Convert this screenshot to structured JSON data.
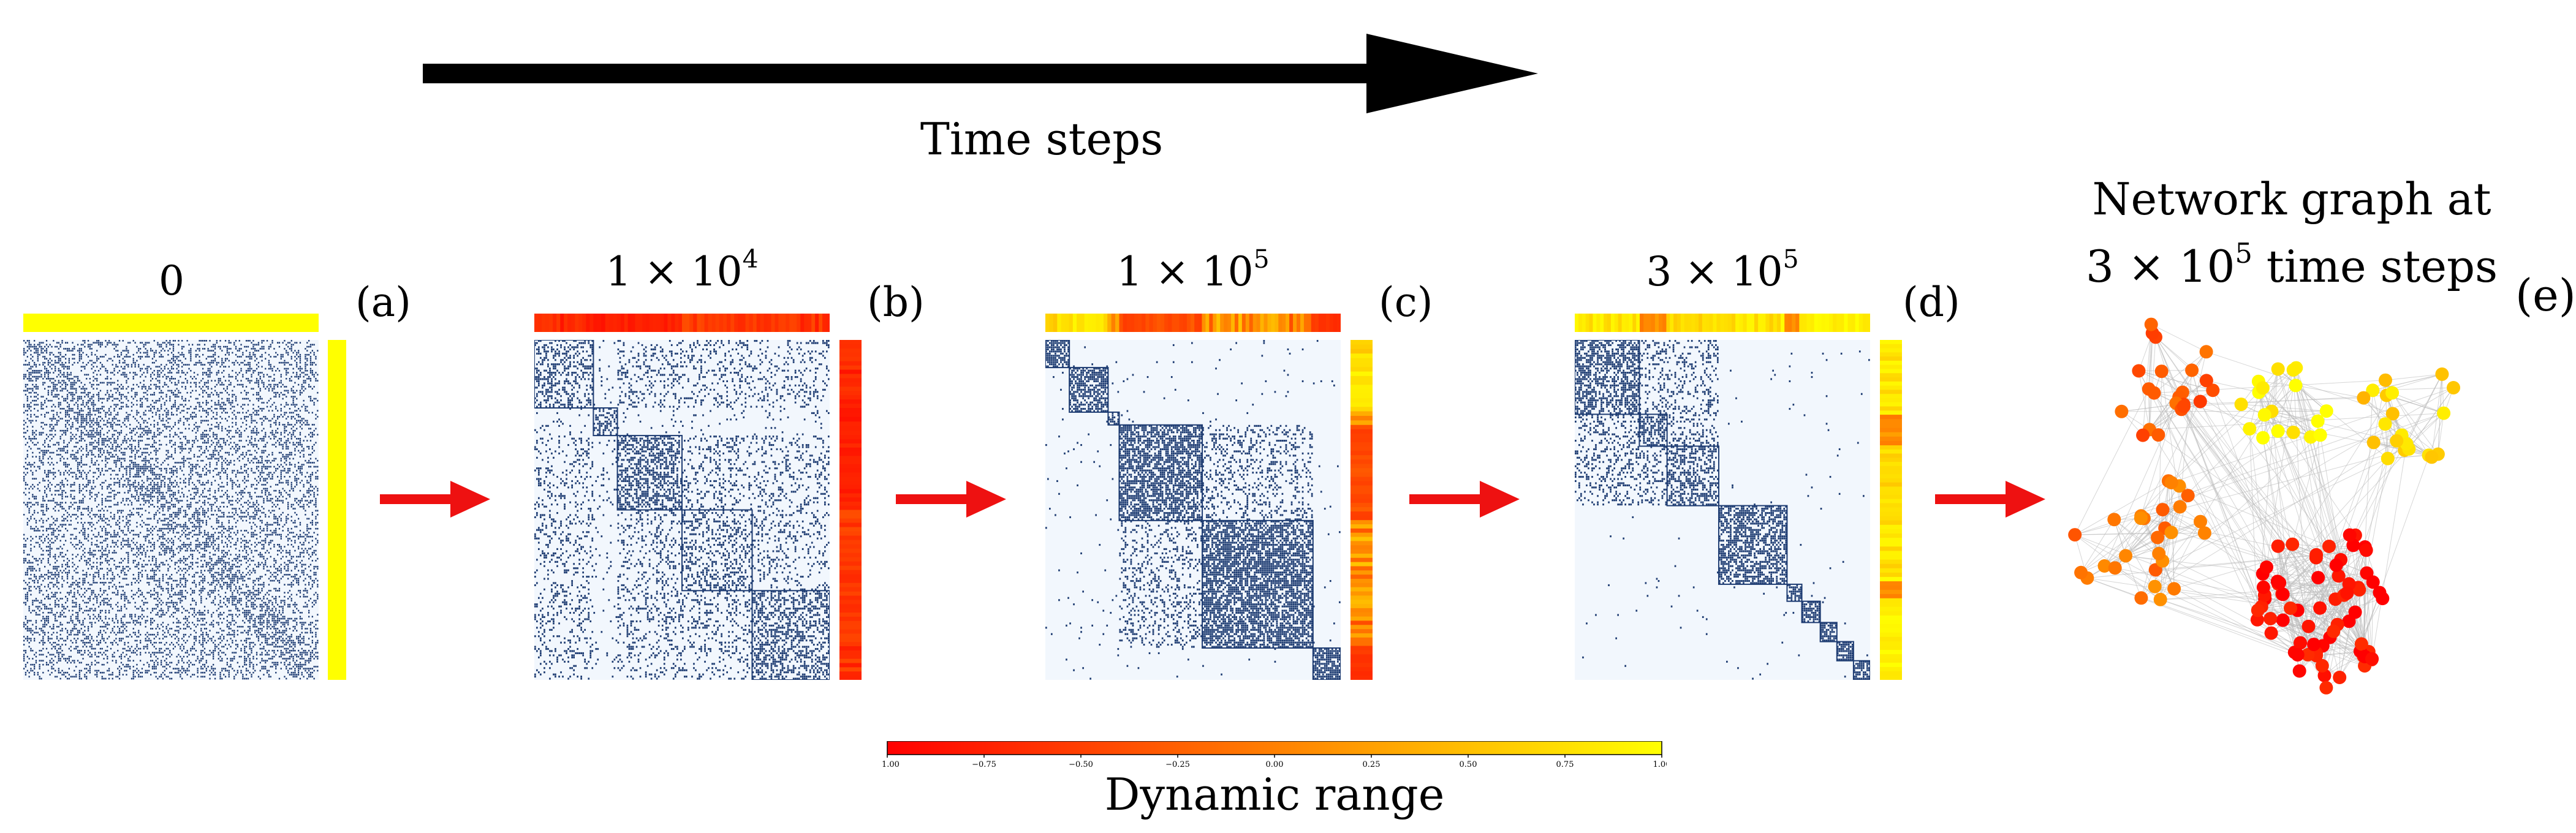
{
  "time_arrow": {
    "label": "Time steps"
  },
  "panels": [
    {
      "id": "a",
      "label": "(a)",
      "title_mant": "",
      "title_exp": "",
      "title_plain": "0"
    },
    {
      "id": "b",
      "label": "(b)",
      "title_mant": "1 × 10",
      "title_exp": "4",
      "title_plain": ""
    },
    {
      "id": "c",
      "label": "(c)",
      "title_mant": "1 × 10",
      "title_exp": "5",
      "title_plain": ""
    },
    {
      "id": "d",
      "label": "(d)",
      "title_mant": "3 × 10",
      "title_exp": "5",
      "title_plain": ""
    }
  ],
  "network": {
    "label": "(e)",
    "title_line1": "Network graph at",
    "title_line2_mant": "3 × 10",
    "title_line2_exp": "5",
    "title_line2_rest": " time steps"
  },
  "colorbar": {
    "label": "Dynamic range",
    "ticks": [
      "−1.00",
      "−0.75",
      "−0.50",
      "−0.25",
      "0.00",
      "0.25",
      "0.50",
      "0.75",
      "1.00"
    ],
    "range": [
      -1,
      1
    ],
    "colors": [
      "#ff0000",
      "#ff8000",
      "#ffff00"
    ]
  },
  "colors": {
    "matrix_fill": "#1f3d73",
    "matrix_bg": "#f2f7fd",
    "transition_arrow": "#ee1111",
    "time_arrow": "#000000",
    "edge": "#bbbbbb"
  }
}
